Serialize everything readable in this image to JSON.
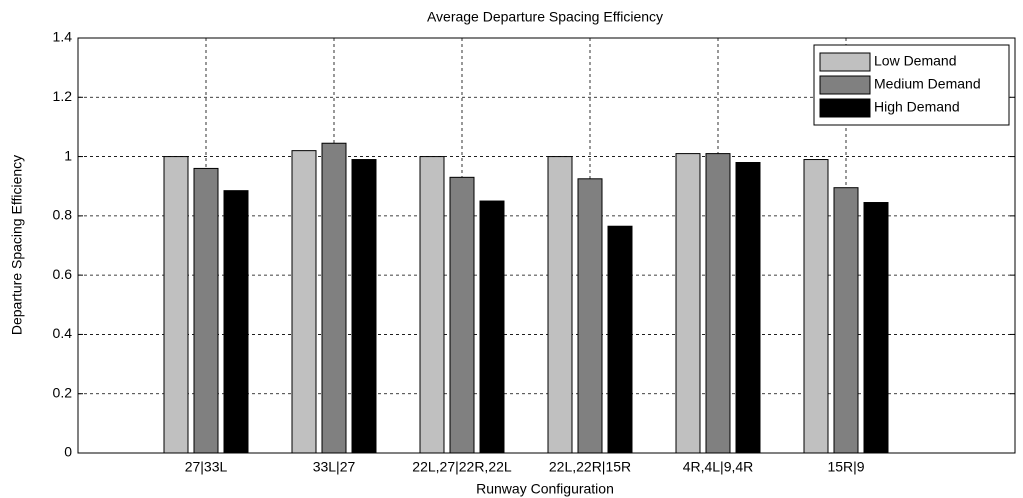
{
  "chart_data": {
    "type": "bar",
    "title": "Average Departure Spacing Efficiency",
    "x_label": "Runway Configuration",
    "y_label": "Departure Spacing Efficiency",
    "categories": [
      "27|33L",
      "33L|27",
      "22L,27|22R,22L",
      "22L,22R|15R",
      "4R,4L|9,4R",
      "15R|9"
    ],
    "series": [
      {
        "name": "Low Demand",
        "color": "#c0c0c0",
        "values": [
          1.0,
          1.02,
          1.0,
          1.0,
          1.01,
          0.99
        ]
      },
      {
        "name": "Medium Demand",
        "color": "#808080",
        "values": [
          0.96,
          1.045,
          0.93,
          0.925,
          1.01,
          0.895
        ]
      },
      {
        "name": "High Demand",
        "color": "#000000",
        "values": [
          0.885,
          0.99,
          0.85,
          0.765,
          0.98,
          0.845
        ]
      }
    ],
    "ylim": [
      0,
      1.4
    ],
    "yticks": [
      0,
      0.2,
      0.4,
      0.6,
      0.8,
      1,
      1.2,
      1.4
    ],
    "grid": true,
    "legend": "upper-right"
  }
}
